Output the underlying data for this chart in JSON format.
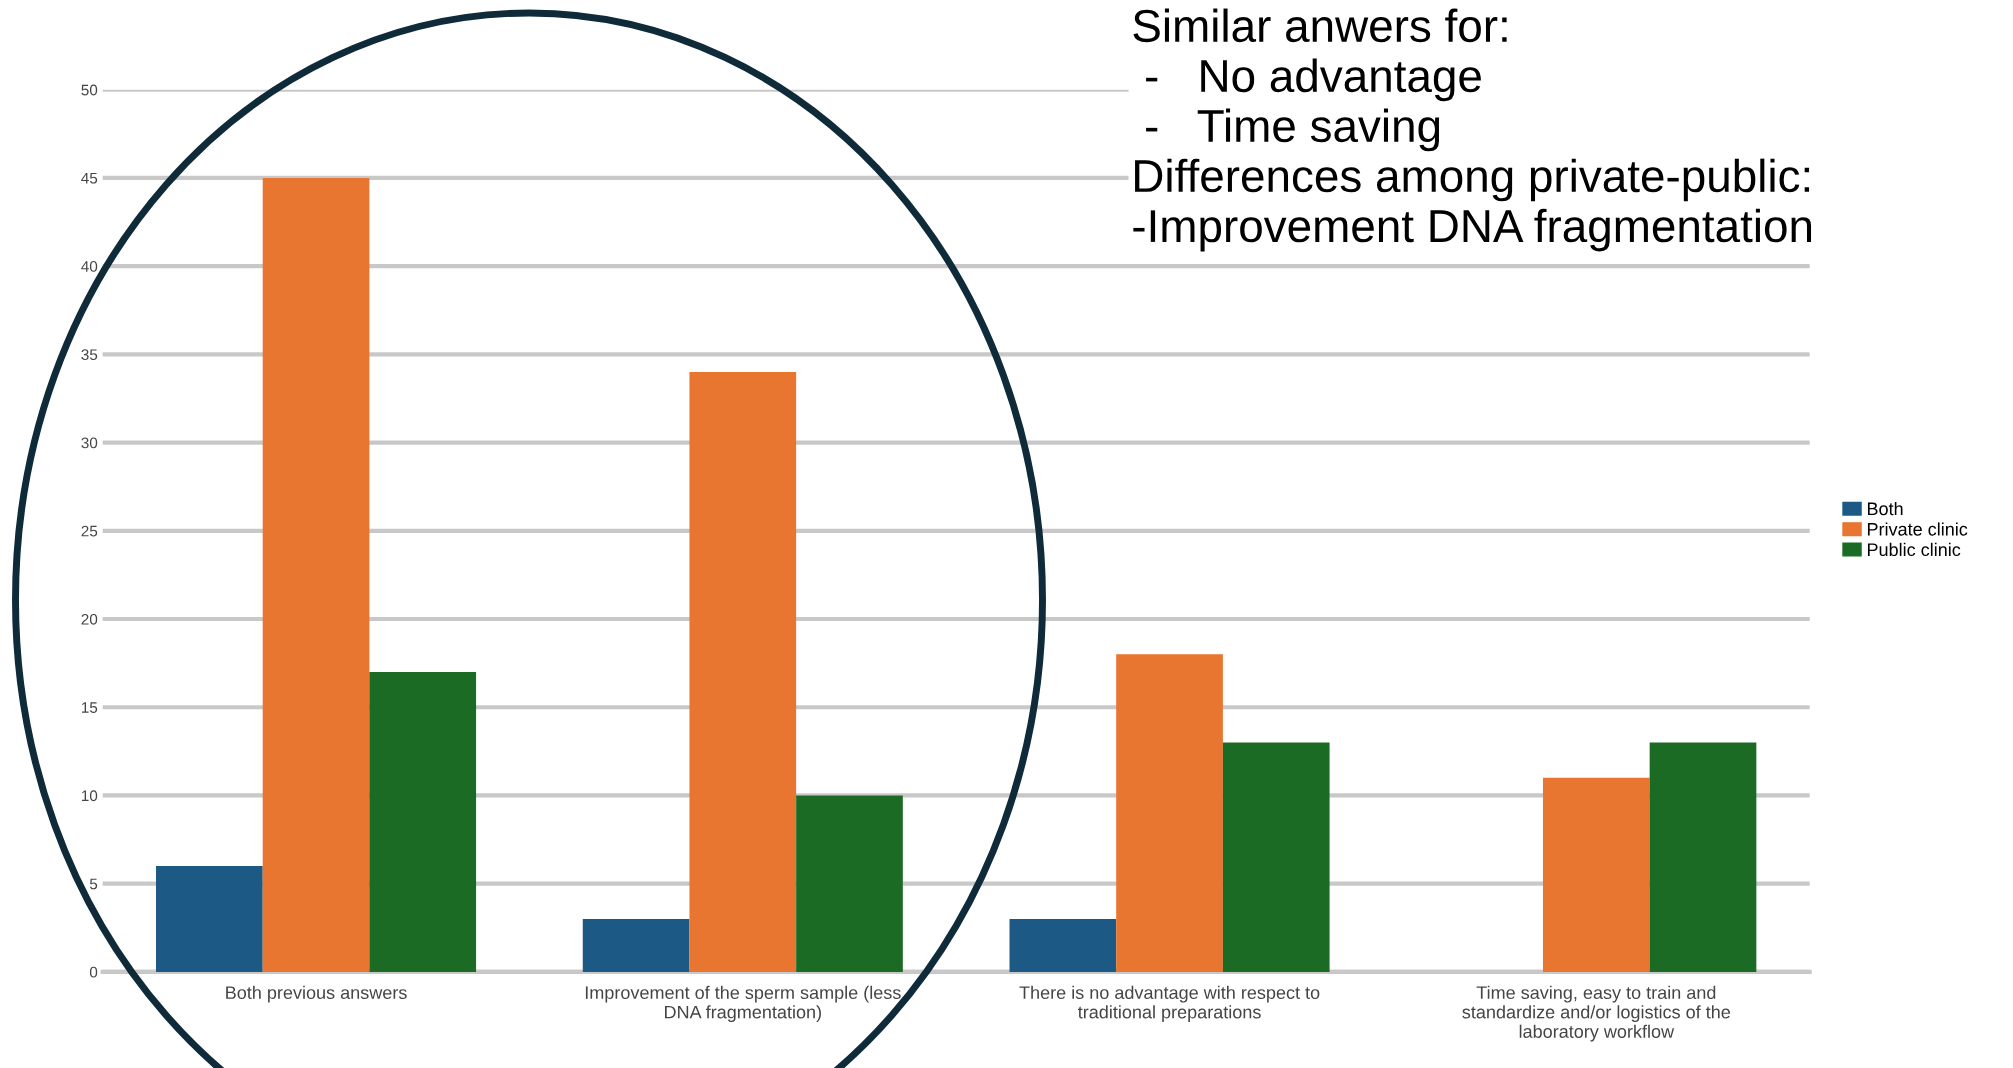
{
  "chart_data": {
    "type": "bar",
    "categories": [
      "Both previous answers",
      "Improvement of the sperm sample (less DNA fragmentation)",
      "There is no advantage with respect to traditional preparations",
      "Time saving, easy to train and standardize and/or logistics of the laboratory workflow"
    ],
    "series": [
      {
        "name": "Both",
        "color": "#1c5a85",
        "values": [
          6,
          3,
          3,
          0
        ]
      },
      {
        "name": "Private clinic",
        "color": "#e87530",
        "values": [
          45,
          34,
          18,
          11
        ]
      },
      {
        "name": "Public clinic",
        "color": "#1c6b25",
        "values": [
          17,
          10,
          13,
          13
        ]
      }
    ],
    "ylim": [
      0,
      50
    ],
    "yticks": [
      0,
      5,
      10,
      15,
      20,
      25,
      30,
      35,
      40,
      45,
      50
    ],
    "grid": "y",
    "legend": "right",
    "annotations": [
      "Similar anwers for:\n -   No advantage\n -   Time saving\nDifferences among private-public:\n-Improvement DNA fragmentation"
    ]
  }
}
